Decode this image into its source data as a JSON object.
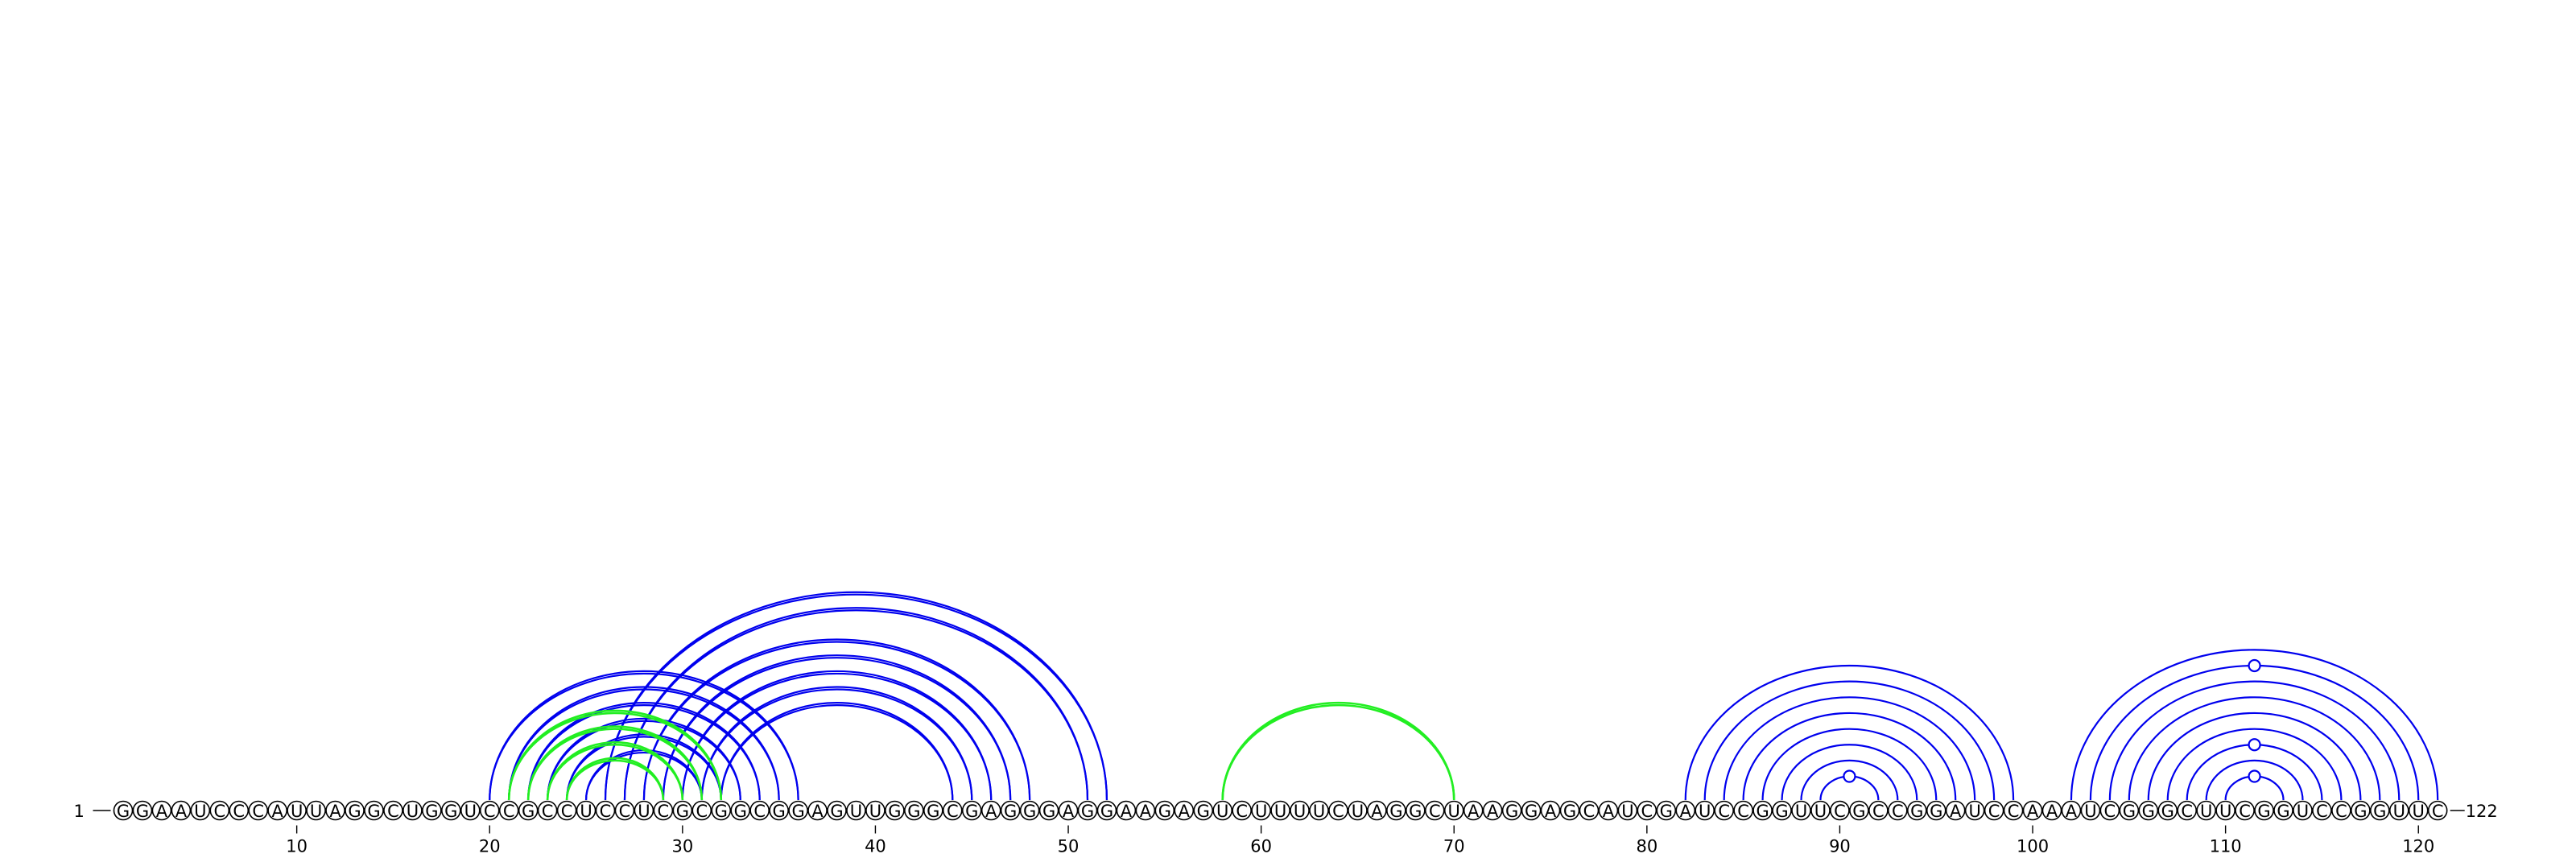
{
  "chart_data": {
    "type": "arc-diagram",
    "sequence": "GGAAUCCCAUUAGGCUGGUCCGCCUCCUCGCGGCGGAGUUGGGCGAGGGAGGAAGAGUCUUUUCUAGGCUAAGGAGCAUCGAUCCGGUUCGCCGGAUCCAAAUCGGGCUUCGGUCCGGUUC",
    "length": 122,
    "start_label": "1",
    "end_label": "122",
    "ticks": [
      10,
      20,
      30,
      40,
      50,
      60,
      70,
      80,
      90,
      100,
      110,
      120
    ],
    "colors": {
      "blue": "#0000ee",
      "green": "#22ee22"
    },
    "arc_groups": [
      {
        "color": "blue",
        "offset": 3,
        "pairs": [
          [
            20,
            36
          ],
          [
            21,
            35
          ],
          [
            22,
            34
          ],
          [
            23,
            33
          ],
          [
            24,
            32
          ],
          [
            25,
            31
          ]
        ]
      },
      {
        "color": "blue",
        "offset": 3,
        "pairs": [
          [
            26,
            52
          ],
          [
            27,
            51
          ],
          [
            28,
            48
          ],
          [
            29,
            47
          ],
          [
            30,
            46
          ],
          [
            31,
            45
          ],
          [
            32,
            44
          ]
        ]
      },
      {
        "color": "green",
        "offset": 3,
        "pairs": [
          [
            21,
            32
          ],
          [
            22,
            31
          ],
          [
            23,
            30
          ],
          [
            24,
            29
          ]
        ]
      },
      {
        "color": "green",
        "offset": 3,
        "pairs": [
          [
            58,
            70
          ]
        ]
      },
      {
        "color": "blue",
        "offset": 0,
        "pairs": [
          [
            82,
            99
          ],
          [
            83,
            98
          ],
          [
            84,
            97
          ],
          [
            85,
            96
          ],
          [
            86,
            95
          ],
          [
            87,
            94
          ],
          [
            88,
            93
          ],
          [
            89,
            92
          ]
        ]
      },
      {
        "color": "blue",
        "offset": 0,
        "pairs": [
          [
            102,
            121
          ],
          [
            103,
            120
          ],
          [
            104,
            119
          ],
          [
            105,
            118
          ],
          [
            106,
            117
          ],
          [
            107,
            116
          ],
          [
            108,
            115
          ],
          [
            109,
            114
          ],
          [
            110,
            113
          ]
        ]
      }
    ],
    "loop_markers": [
      {
        "pos": 90.5,
        "level": 1
      },
      {
        "pos": 111.5,
        "level": 1
      },
      {
        "pos": 111.5,
        "level": 3
      },
      {
        "pos": 111.5,
        "level": 8
      }
    ]
  }
}
